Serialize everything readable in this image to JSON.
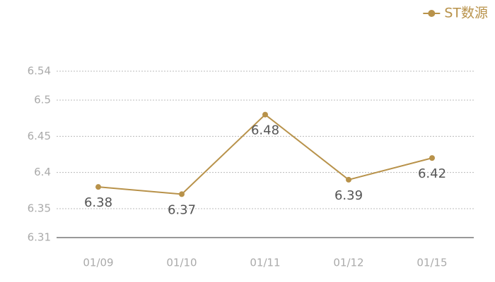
{
  "chart_data": {
    "type": "line",
    "categories": [
      "01/09",
      "01/10",
      "01/11",
      "01/12",
      "01/15"
    ],
    "series": [
      {
        "name": "ST数源",
        "color": "#b8924a",
        "values": [
          6.38,
          6.37,
          6.48,
          6.39,
          6.42
        ]
      }
    ],
    "ylim": [
      6.31,
      6.54
    ],
    "yticks": [
      6.31,
      6.35,
      6.4,
      6.45,
      6.5,
      6.54
    ],
    "grid": true,
    "legend": "top-right"
  }
}
